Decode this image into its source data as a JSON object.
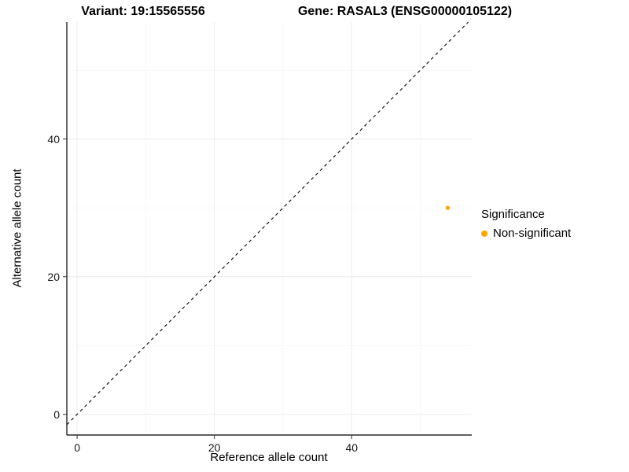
{
  "chart_data": {
    "type": "scatter",
    "title_left": "Variant: 19:15565556",
    "title_right": "Gene: RASAL3 (ENSG00000105122)",
    "xlabel": "Reference allele count",
    "ylabel": "Alternative allele count",
    "xlim": [
      -1.5,
      57.5
    ],
    "ylim": [
      -3,
      57
    ],
    "xticks": [
      0,
      20,
      40
    ],
    "yticks": [
      0,
      20,
      40
    ],
    "xticks_minor": [
      10,
      30,
      50
    ],
    "yticks_minor": [
      10,
      30,
      50
    ],
    "grid": true,
    "reference_line": {
      "type": "identity",
      "slope": 1,
      "intercept": 0,
      "style": "dashed",
      "color": "#000000"
    },
    "series": [
      {
        "name": "Non-significant",
        "color": "#FFA500",
        "points": [
          {
            "x": 54,
            "y": 30
          }
        ]
      }
    ],
    "legend": {
      "title": "Significance",
      "position": "right",
      "entries": [
        {
          "label": "Non-significant",
          "color": "#FFA500"
        }
      ]
    },
    "colors": {
      "grid_major": "#ececec",
      "grid_minor": "#f6f6f6",
      "axis": "#000000",
      "tick": "#333333",
      "point": "#FFA500"
    }
  }
}
